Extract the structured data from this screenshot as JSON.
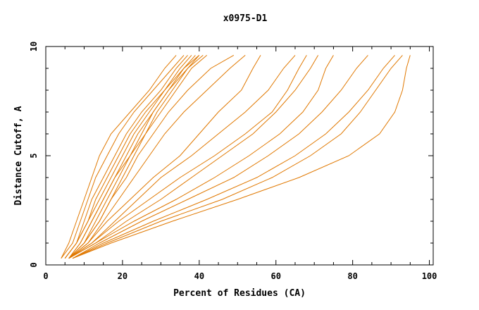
{
  "chart_data": {
    "type": "line",
    "title": "x0975-D1",
    "xlabel": "Percent of Residues (CA)",
    "ylabel": "Distance Cutoff, A",
    "xlim": [
      0,
      101
    ],
    "ylim": [
      0,
      10
    ],
    "x_ticks": [
      0,
      20,
      40,
      60,
      80,
      100
    ],
    "x_tick_labels": [
      "0",
      "20",
      "40",
      "60",
      "80",
      "100"
    ],
    "y_ticks": [
      0,
      5,
      10
    ],
    "y_tick_labels": [
      "0",
      "5",
      "10"
    ],
    "grid": false,
    "legend": "none",
    "line_color": "#e07800",
    "series": [
      {
        "points": [
          [
            4,
            0.3
          ],
          [
            7,
            1
          ],
          [
            9,
            2
          ],
          [
            11,
            3
          ],
          [
            13,
            4
          ],
          [
            16,
            5
          ],
          [
            19,
            6
          ],
          [
            23,
            7
          ],
          [
            28,
            8
          ],
          [
            33,
            9
          ],
          [
            36,
            9.6
          ]
        ]
      },
      {
        "points": [
          [
            4,
            0.3
          ],
          [
            6,
            1
          ],
          [
            8,
            2
          ],
          [
            10,
            3
          ],
          [
            12,
            4
          ],
          [
            14,
            5
          ],
          [
            17,
            6
          ],
          [
            22,
            7
          ],
          [
            27,
            8
          ],
          [
            31,
            9
          ],
          [
            34,
            9.6
          ]
        ]
      },
      {
        "points": [
          [
            5,
            0.3
          ],
          [
            8,
            1
          ],
          [
            10,
            2
          ],
          [
            12,
            3
          ],
          [
            15,
            4
          ],
          [
            18,
            5
          ],
          [
            21,
            6
          ],
          [
            25,
            7
          ],
          [
            30,
            8
          ],
          [
            34,
            9
          ],
          [
            37,
            9.6
          ]
        ]
      },
      {
        "points": [
          [
            5,
            0.3
          ],
          [
            8,
            1
          ],
          [
            11,
            2
          ],
          [
            13,
            3
          ],
          [
            16,
            4
          ],
          [
            19,
            5
          ],
          [
            22,
            6
          ],
          [
            26,
            7
          ],
          [
            31,
            8
          ],
          [
            35,
            9
          ],
          [
            38,
            9.6
          ]
        ]
      },
      {
        "points": [
          [
            5,
            0.3
          ],
          [
            8,
            1
          ],
          [
            11,
            2
          ],
          [
            14,
            3
          ],
          [
            17,
            4
          ],
          [
            20,
            5
          ],
          [
            23,
            6
          ],
          [
            27,
            7
          ],
          [
            31,
            8
          ],
          [
            36,
            9
          ],
          [
            39,
            9.6
          ]
        ]
      },
      {
        "points": [
          [
            6,
            0.3
          ],
          [
            9,
            1
          ],
          [
            12,
            2
          ],
          [
            15,
            3
          ],
          [
            18,
            4
          ],
          [
            21,
            5
          ],
          [
            24,
            6
          ],
          [
            28,
            7
          ],
          [
            32,
            8
          ],
          [
            36,
            9
          ],
          [
            40,
            9.6
          ]
        ]
      },
      {
        "points": [
          [
            6,
            0.3
          ],
          [
            9,
            1
          ],
          [
            12,
            2
          ],
          [
            15,
            3
          ],
          [
            18,
            4
          ],
          [
            22,
            5
          ],
          [
            25,
            6
          ],
          [
            28,
            7
          ],
          [
            32,
            8
          ],
          [
            37,
            9
          ],
          [
            41,
            9.6
          ]
        ]
      },
      {
        "points": [
          [
            6,
            0.3
          ],
          [
            10,
            1
          ],
          [
            13,
            2
          ],
          [
            16,
            3
          ],
          [
            19,
            4
          ],
          [
            22,
            5
          ],
          [
            26,
            6
          ],
          [
            29,
            7
          ],
          [
            33,
            8
          ],
          [
            37,
            9
          ],
          [
            40,
            9.6
          ]
        ]
      },
      {
        "points": [
          [
            6,
            0.3
          ],
          [
            10,
            1
          ],
          [
            14,
            2
          ],
          [
            17,
            3
          ],
          [
            20,
            4
          ],
          [
            23,
            5
          ],
          [
            26,
            6
          ],
          [
            30,
            7
          ],
          [
            34,
            8
          ],
          [
            38,
            9
          ],
          [
            42,
            9.6
          ]
        ]
      },
      {
        "points": [
          [
            6,
            0.3
          ],
          [
            10,
            1
          ],
          [
            14,
            2
          ],
          [
            17,
            3
          ],
          [
            21,
            4
          ],
          [
            24,
            5
          ],
          [
            28,
            6
          ],
          [
            32,
            7
          ],
          [
            37,
            8
          ],
          [
            43,
            9
          ],
          [
            49,
            9.6
          ]
        ]
      },
      {
        "points": [
          [
            6,
            0.3
          ],
          [
            11,
            1
          ],
          [
            15,
            2
          ],
          [
            19,
            3
          ],
          [
            23,
            4
          ],
          [
            27,
            5
          ],
          [
            31,
            6
          ],
          [
            36,
            7
          ],
          [
            42,
            8
          ],
          [
            48,
            9
          ],
          [
            52,
            9.6
          ]
        ]
      },
      {
        "points": [
          [
            6,
            0.3
          ],
          [
            11,
            1
          ],
          [
            16,
            2
          ],
          [
            22,
            3
          ],
          [
            28,
            4
          ],
          [
            35,
            5
          ],
          [
            40,
            6
          ],
          [
            45,
            7
          ],
          [
            51,
            8
          ],
          [
            54,
            9
          ],
          [
            56,
            9.6
          ]
        ]
      },
      {
        "points": [
          [
            6,
            0.3
          ],
          [
            12,
            1
          ],
          [
            18,
            2
          ],
          [
            24,
            3
          ],
          [
            30,
            4
          ],
          [
            38,
            5
          ],
          [
            45,
            6
          ],
          [
            52,
            7
          ],
          [
            58,
            8
          ],
          [
            62,
            9
          ],
          [
            65,
            9.6
          ]
        ]
      },
      {
        "points": [
          [
            6,
            0.3
          ],
          [
            12,
            1
          ],
          [
            19,
            2
          ],
          [
            27,
            3
          ],
          [
            35,
            4
          ],
          [
            44,
            5
          ],
          [
            52,
            6
          ],
          [
            59,
            7
          ],
          [
            63,
            8
          ],
          [
            66,
            9
          ],
          [
            68,
            9.6
          ]
        ]
      },
      {
        "points": [
          [
            6,
            0.3
          ],
          [
            13,
            1
          ],
          [
            21,
            2
          ],
          [
            30,
            3
          ],
          [
            38,
            4
          ],
          [
            46,
            5
          ],
          [
            54,
            6
          ],
          [
            60,
            7
          ],
          [
            65,
            8
          ],
          [
            69,
            9
          ],
          [
            71,
            9.6
          ]
        ]
      },
      {
        "points": [
          [
            6,
            0.3
          ],
          [
            13,
            1
          ],
          [
            23,
            2
          ],
          [
            34,
            3
          ],
          [
            44,
            4
          ],
          [
            53,
            5
          ],
          [
            61,
            6
          ],
          [
            67,
            7
          ],
          [
            71,
            8
          ],
          [
            73,
            9
          ],
          [
            75,
            9.6
          ]
        ]
      },
      {
        "points": [
          [
            7,
            0.3
          ],
          [
            14,
            1
          ],
          [
            25,
            2
          ],
          [
            37,
            3
          ],
          [
            49,
            4
          ],
          [
            58,
            5
          ],
          [
            66,
            6
          ],
          [
            72,
            7
          ],
          [
            77,
            8
          ],
          [
            81,
            9
          ],
          [
            84,
            9.6
          ]
        ]
      },
      {
        "points": [
          [
            7,
            0.3
          ],
          [
            15,
            1
          ],
          [
            28,
            2
          ],
          [
            42,
            3
          ],
          [
            55,
            4
          ],
          [
            65,
            5
          ],
          [
            73,
            6
          ],
          [
            79,
            7
          ],
          [
            84,
            8
          ],
          [
            88,
            9
          ],
          [
            91,
            9.6
          ]
        ]
      },
      {
        "points": [
          [
            7,
            0.3
          ],
          [
            16,
            1
          ],
          [
            30,
            2
          ],
          [
            46,
            3
          ],
          [
            59,
            4
          ],
          [
            69,
            5
          ],
          [
            77,
            6
          ],
          [
            82,
            7
          ],
          [
            86,
            8
          ],
          [
            90,
            9
          ],
          [
            93,
            9.6
          ]
        ]
      },
      {
        "points": [
          [
            7,
            0.3
          ],
          [
            17,
            1
          ],
          [
            33,
            2
          ],
          [
            50,
            3
          ],
          [
            66,
            4
          ],
          [
            79,
            5
          ],
          [
            87,
            6
          ],
          [
            91,
            7
          ],
          [
            93,
            8
          ],
          [
            94,
            9
          ],
          [
            95,
            9.6
          ]
        ]
      }
    ]
  }
}
